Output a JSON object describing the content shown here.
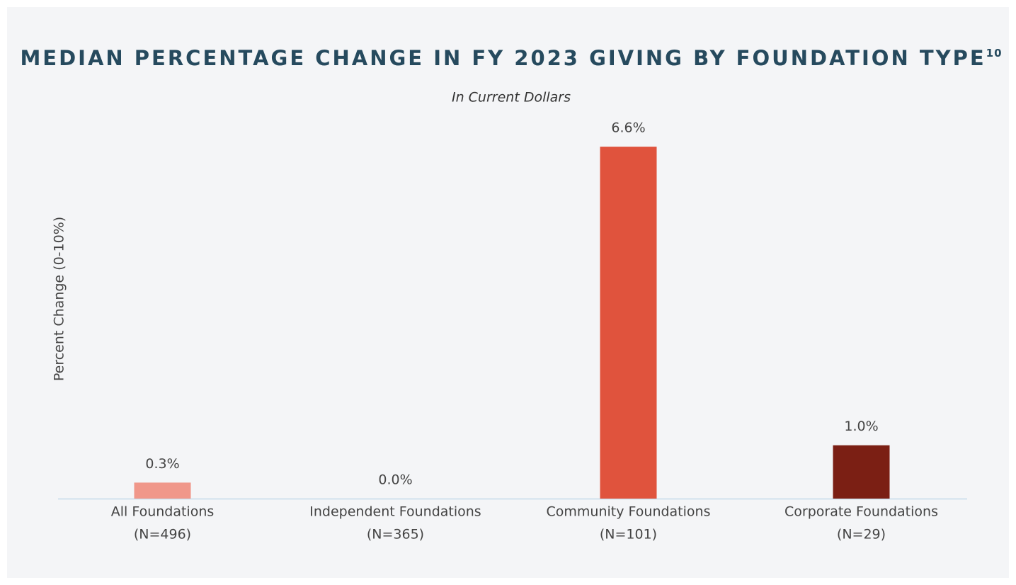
{
  "chart_data": {
    "type": "bar",
    "title": "MEDIAN PERCENTAGE CHANGE IN FY 2023 GIVING BY FOUNDATION TYPE",
    "title_superscript": "10",
    "subtitle": "In Current Dollars",
    "y_label": "Percent Change (0-10%)",
    "categories": [
      [
        "All Foundations",
        "(N=496)"
      ],
      [
        "Independent Foundations",
        "(N=365)"
      ],
      [
        "Community Foundations",
        "(N=101)"
      ],
      [
        "Corporate Foundations",
        "(N=29)"
      ]
    ],
    "values": [
      0.3,
      0.0,
      6.6,
      1.0
    ],
    "value_labels": [
      "0.3%",
      "0.0%",
      "6.6%",
      "1.0%"
    ],
    "colors": [
      "#f0978a",
      "#e8644f",
      "#e0533d",
      "#7b1f14"
    ],
    "ylim": [
      0,
      7
    ]
  }
}
